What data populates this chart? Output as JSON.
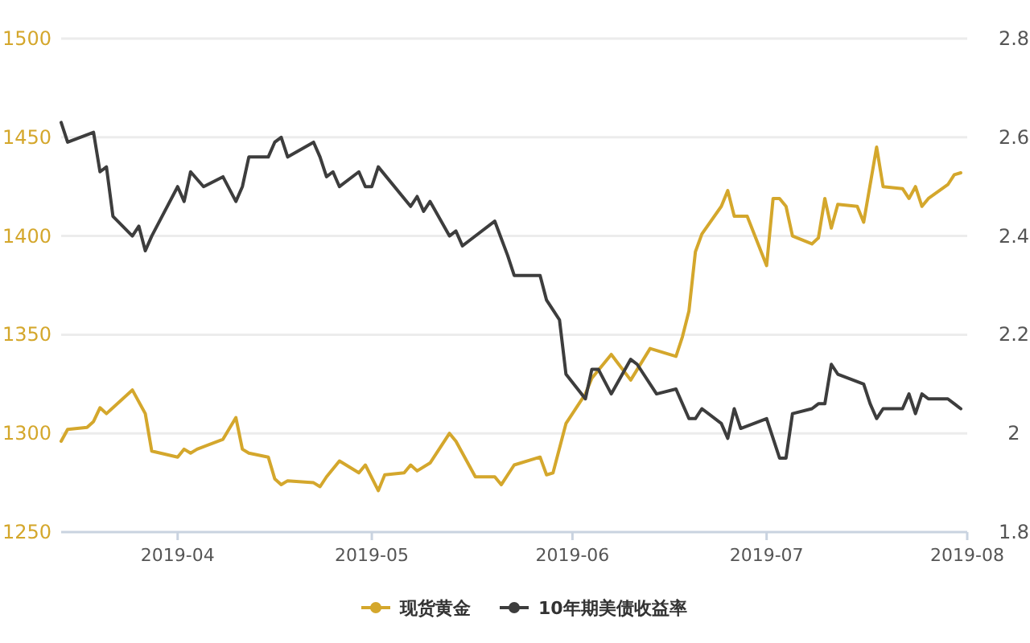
{
  "chart_data": {
    "type": "line",
    "grid": "y",
    "legend": "bottom",
    "xlim": [
      "2019-03-14",
      "2019-08-01"
    ],
    "xticks": [
      {
        "value": "2019-04-01",
        "label": "2019-04"
      },
      {
        "value": "2019-05-01",
        "label": "2019-05"
      },
      {
        "value": "2019-06-01",
        "label": "2019-06"
      },
      {
        "value": "2019-07-01",
        "label": "2019-07"
      },
      {
        "value": "2019-08-01",
        "label": "2019-08"
      }
    ],
    "ylim": [
      1250,
      1500
    ],
    "yticks": [
      1250,
      1300,
      1350,
      1400,
      1450,
      1500
    ],
    "y2lim": [
      1.8,
      2.8
    ],
    "y2ticks": [
      1.8,
      2,
      2.2,
      2.4,
      2.6,
      2.8
    ],
    "series": [
      {
        "name": "现货黄金",
        "color": "#d4a72c",
        "x": [
          "2019-03-14",
          "2019-03-15",
          "2019-03-18",
          "2019-03-19",
          "2019-03-20",
          "2019-03-21",
          "2019-03-25",
          "2019-03-27",
          "2019-03-28",
          "2019-04-01",
          "2019-04-02",
          "2019-04-03",
          "2019-04-04",
          "2019-04-08",
          "2019-04-10",
          "2019-04-11",
          "2019-04-12",
          "2019-04-15",
          "2019-04-16",
          "2019-04-17",
          "2019-04-18",
          "2019-04-22",
          "2019-04-23",
          "2019-04-24",
          "2019-04-26",
          "2019-04-29",
          "2019-04-30",
          "2019-05-02",
          "2019-05-03",
          "2019-05-06",
          "2019-05-07",
          "2019-05-08",
          "2019-05-10",
          "2019-05-13",
          "2019-05-14",
          "2019-05-17",
          "2019-05-20",
          "2019-05-21",
          "2019-05-23",
          "2019-05-27",
          "2019-05-28",
          "2019-05-29",
          "2019-05-31",
          "2019-06-03",
          "2019-06-04",
          "2019-06-07",
          "2019-06-10",
          "2019-06-13",
          "2019-06-17",
          "2019-06-18",
          "2019-06-19",
          "2019-06-20",
          "2019-06-21",
          "2019-06-24",
          "2019-06-25",
          "2019-06-26",
          "2019-06-28",
          "2019-07-01",
          "2019-07-02",
          "2019-07-03",
          "2019-07-04",
          "2019-07-05",
          "2019-07-08",
          "2019-07-09",
          "2019-07-10",
          "2019-07-11",
          "2019-07-12",
          "2019-07-15",
          "2019-07-16",
          "2019-07-18",
          "2019-07-19",
          "2019-07-22",
          "2019-07-23",
          "2019-07-24",
          "2019-07-25",
          "2019-07-26",
          "2019-07-29",
          "2019-07-30",
          "2019-07-31"
        ],
        "values": [
          1296,
          1302,
          1303,
          1306,
          1313,
          1310,
          1322,
          1310,
          1291,
          1288,
          1292,
          1290,
          1292,
          1297,
          1308,
          1292,
          1290,
          1288,
          1277,
          1274,
          1276,
          1275,
          1273,
          1278,
          1286,
          1280,
          1284,
          1271,
          1279,
          1280,
          1284,
          1281,
          1285,
          1300,
          1296,
          1278,
          1278,
          1274,
          1284,
          1288,
          1279,
          1280,
          1305,
          1320,
          1328,
          1340,
          1327,
          1343,
          1339,
          1349,
          1362,
          1392,
          1401,
          1415,
          1423,
          1410,
          1410,
          1385,
          1419,
          1419,
          1415,
          1400,
          1396,
          1399,
          1419,
          1404,
          1416,
          1415,
          1407,
          1445,
          1425,
          1424,
          1419,
          1425,
          1415,
          1419,
          1426,
          1431,
          1432
        ]
      },
      {
        "name": "10年期美债收益率",
        "color": "#3d3d3d",
        "axis": "y2",
        "x": [
          "2019-03-14",
          "2019-03-15",
          "2019-03-19",
          "2019-03-20",
          "2019-03-21",
          "2019-03-22",
          "2019-03-25",
          "2019-03-26",
          "2019-03-27",
          "2019-03-28",
          "2019-04-01",
          "2019-04-02",
          "2019-04-03",
          "2019-04-05",
          "2019-04-08",
          "2019-04-10",
          "2019-04-11",
          "2019-04-12",
          "2019-04-15",
          "2019-04-16",
          "2019-04-17",
          "2019-04-18",
          "2019-04-22",
          "2019-04-23",
          "2019-04-24",
          "2019-04-25",
          "2019-04-26",
          "2019-04-29",
          "2019-04-30",
          "2019-05-01",
          "2019-05-02",
          "2019-05-07",
          "2019-05-08",
          "2019-05-09",
          "2019-05-10",
          "2019-05-13",
          "2019-05-14",
          "2019-05-15",
          "2019-05-16",
          "2019-05-20",
          "2019-05-22",
          "2019-05-23",
          "2019-05-27",
          "2019-05-28",
          "2019-05-29",
          "2019-05-30",
          "2019-05-31",
          "2019-06-03",
          "2019-06-04",
          "2019-06-05",
          "2019-06-07",
          "2019-06-10",
          "2019-06-11",
          "2019-06-14",
          "2019-06-17",
          "2019-06-19",
          "2019-06-20",
          "2019-06-21",
          "2019-06-24",
          "2019-06-25",
          "2019-06-26",
          "2019-06-27",
          "2019-07-01",
          "2019-07-03",
          "2019-07-04",
          "2019-07-05",
          "2019-07-08",
          "2019-07-09",
          "2019-07-10",
          "2019-07-11",
          "2019-07-12",
          "2019-07-16",
          "2019-07-17",
          "2019-07-18",
          "2019-07-19",
          "2019-07-22",
          "2019-07-23",
          "2019-07-24",
          "2019-07-25",
          "2019-07-26",
          "2019-07-29",
          "2019-07-30",
          "2019-07-31"
        ],
        "values": [
          2.63,
          2.59,
          2.61,
          2.53,
          2.54,
          2.44,
          2.4,
          2.42,
          2.37,
          2.4,
          2.5,
          2.47,
          2.53,
          2.5,
          2.52,
          2.47,
          2.5,
          2.56,
          2.56,
          2.59,
          2.6,
          2.56,
          2.59,
          2.56,
          2.52,
          2.53,
          2.5,
          2.53,
          2.5,
          2.5,
          2.54,
          2.46,
          2.48,
          2.45,
          2.47,
          2.4,
          2.41,
          2.38,
          2.39,
          2.43,
          2.36,
          2.32,
          2.32,
          2.27,
          2.25,
          2.23,
          2.12,
          2.07,
          2.13,
          2.13,
          2.08,
          2.15,
          2.14,
          2.08,
          2.09,
          2.03,
          2.03,
          2.05,
          2.02,
          1.99,
          2.05,
          2.01,
          2.03,
          1.95,
          1.95,
          2.04,
          2.05,
          2.06,
          2.06,
          2.14,
          2.12,
          2.1,
          2.06,
          2.03,
          2.05,
          2.05,
          2.08,
          2.04,
          2.08,
          2.07,
          2.07,
          2.06,
          2.05
        ]
      }
    ]
  }
}
